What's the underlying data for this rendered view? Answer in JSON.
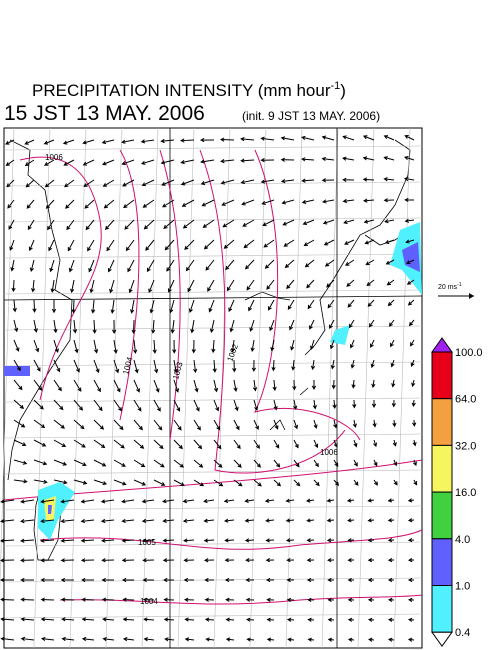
{
  "header": {
    "title": "PRECIPITATION INTENSITY (mm hour",
    "title_sup": "-1",
    "title_end": ")",
    "time": "15 JST 13 MAY. 2006",
    "init": "(init. 9 JST 13 MAY. 2006)"
  },
  "scale": {
    "label": "20 ms",
    "label_sup": "-1"
  },
  "isobars": [
    "1006",
    "1004",
    "1003",
    "1002",
    "1006",
    "1005",
    "1004"
  ],
  "legend": {
    "labels": [
      "100.0",
      "64.0",
      "32.0",
      "16.0",
      "4.0",
      "1.0",
      "0.4"
    ],
    "colors": [
      "#e8001a",
      "#f5a040",
      "#f5f560",
      "#40d040",
      "#6060ff",
      "#50f0ff"
    ],
    "over_color": "#a020f0",
    "under_color": "#ffffff"
  }
}
